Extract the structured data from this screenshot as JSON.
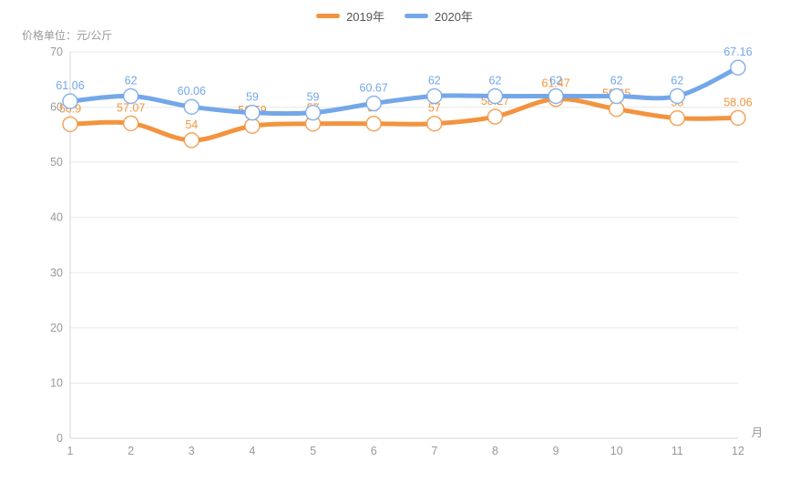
{
  "chart_data": {
    "type": "line",
    "ylabel": "价格单位：元/公斤",
    "xlabel": "月",
    "x": [
      1,
      2,
      3,
      4,
      5,
      6,
      7,
      8,
      9,
      10,
      11,
      12
    ],
    "ylim": [
      0,
      70
    ],
    "ytick_step": 10,
    "grid": true,
    "smooth": true,
    "legend_position": "top",
    "series": [
      {
        "name": "2019年",
        "color": "#f2943f",
        "values": [
          56.9,
          57.07,
          54,
          56.59,
          57,
          57,
          57,
          58.27,
          61.47,
          59.65,
          58,
          58.06
        ]
      },
      {
        "name": "2020年",
        "color": "#74a7e8",
        "values": [
          61.06,
          62,
          60.06,
          59,
          59,
          60.67,
          62,
          62,
          62,
          62,
          62,
          67.16
        ]
      }
    ],
    "axis_text_color": "#999999",
    "grid_color": "#e9e9e9",
    "axis_line_color": "#d7d7d7"
  }
}
